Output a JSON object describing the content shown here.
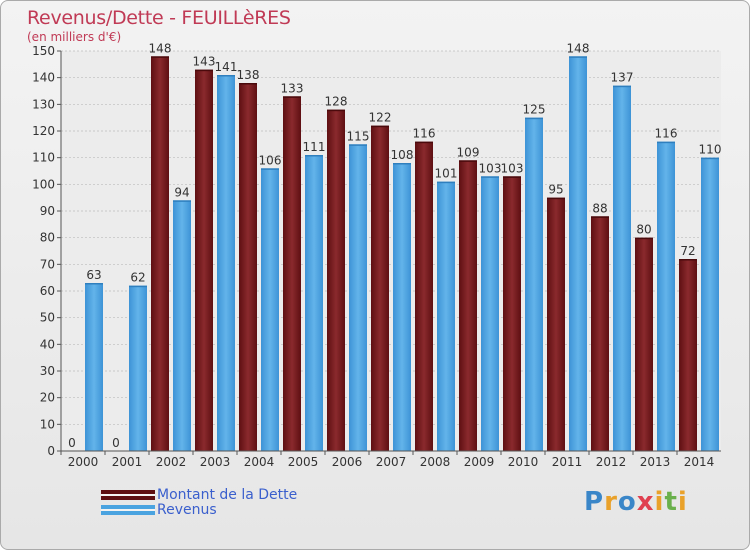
{
  "title": "Revenus/Dette - FEUILLèRES",
  "subtitle": "(en milliers d'€)",
  "logo_text": "Proxiti",
  "chart_data": {
    "type": "bar",
    "categories": [
      "2000",
      "2001",
      "2002",
      "2003",
      "2004",
      "2005",
      "2006",
      "2007",
      "2008",
      "2009",
      "2010",
      "2011",
      "2012",
      "2013",
      "2014"
    ],
    "series": [
      {
        "name": "Montant de la Dette",
        "color": "#7a1a1a",
        "values": [
          0,
          0,
          148,
          143,
          138,
          133,
          128,
          122,
          116,
          109,
          103,
          95,
          88,
          80,
          72
        ]
      },
      {
        "name": "Revenus",
        "color": "#4aa3e0",
        "values": [
          63,
          62,
          94,
          141,
          106,
          111,
          115,
          108,
          101,
          103,
          125,
          148,
          137,
          116,
          110
        ]
      }
    ],
    "ylim": [
      0,
      150
    ],
    "yticks": [
      0,
      10,
      20,
      30,
      40,
      50,
      60,
      70,
      80,
      90,
      100,
      110,
      120,
      130,
      140,
      150
    ],
    "grid": true,
    "legend_position": "bottom-left"
  },
  "legend": [
    {
      "label": "Montant de la Dette",
      "color": "#7a1a1a"
    },
    {
      "label": "Revenus",
      "color": "#4aa3e0"
    }
  ]
}
